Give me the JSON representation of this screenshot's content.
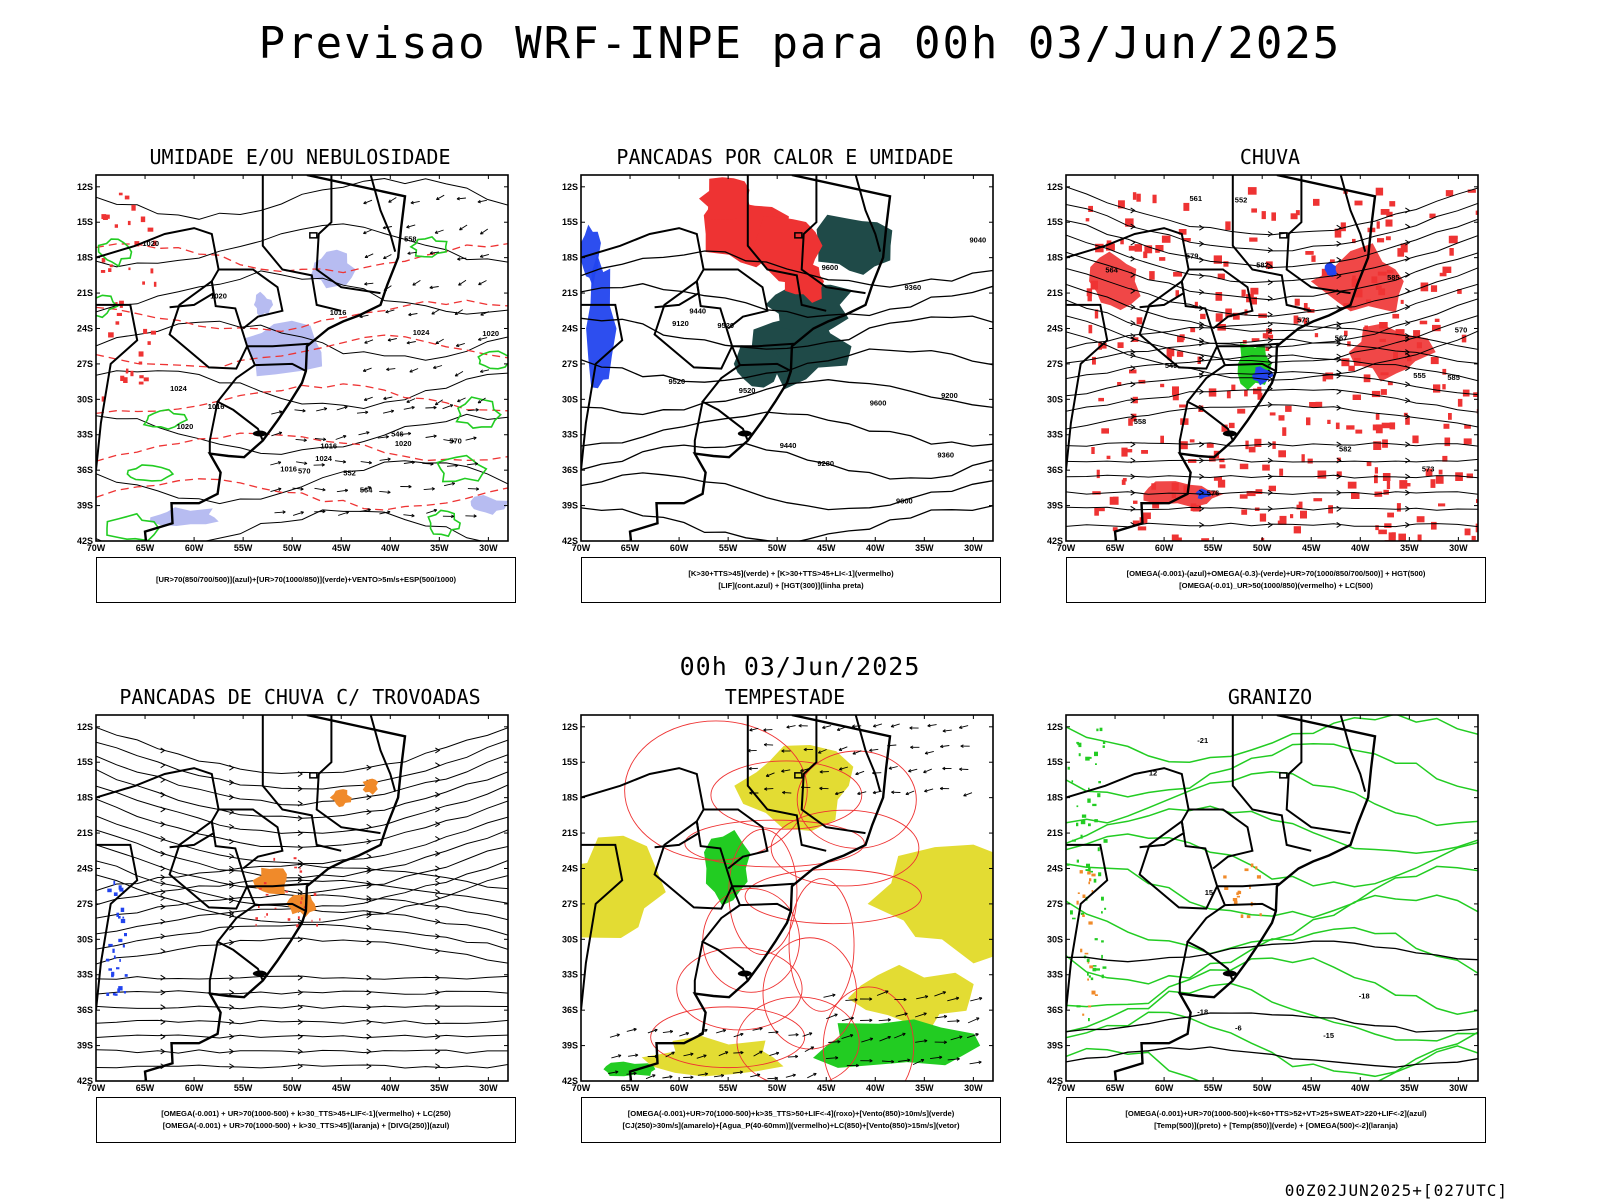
{
  "header": {
    "title": "Previsao WRF-INPE  para 00h 03/Jun/2025",
    "mid_date": "00h 03/Jun/2025",
    "footer": "00Z02JUN2025+[027UTC]"
  },
  "axes": {
    "lat_labels": [
      "12S",
      "15S",
      "18S",
      "21S",
      "24S",
      "27S",
      "30S",
      "33S",
      "36S",
      "39S",
      "42S"
    ],
    "lon_labels": [
      "70W",
      "65W",
      "60W",
      "55W",
      "50W",
      "45W",
      "40W",
      "35W",
      "30W"
    ]
  },
  "colors": {
    "green": "#22cc22",
    "red": "#ee3333",
    "blue": "#2244ee",
    "lavender": "#aab0ee",
    "darkteal": "#1f4a48",
    "yellow": "#e3dc33",
    "orange": "#f08a2a",
    "black": "#000000"
  },
  "panels": [
    {
      "title": "UMIDADE E/OU NEBULOSIDADE",
      "legend": [
        "[UR>70(850/700/500)](azul)+[UR>70(1000/850)](verde)+VENTO>5m/s+ESP(500/1000)"
      ],
      "contour_labels": [
        "1016",
        "1016",
        "1016",
        "1020",
        "1020",
        "1020",
        "1024",
        "1024",
        "1024",
        "1020",
        "1016",
        "570",
        "570",
        "564",
        "558",
        "552",
        "546",
        "1020"
      ]
    },
    {
      "title": "PANCADAS POR CALOR E UMIDADE",
      "legend": [
        "[K>30+TTS>45](verde) + [K>30+TTS>45+LI<-1](vermelho)",
        "[LIF](cont.azul) + [HGT(300)](linha preta)"
      ],
      "contour_labels": [
        "9600",
        "9600",
        "9520",
        "9520",
        "9440",
        "9440",
        "9360",
        "9360",
        "9280",
        "9200",
        "9120",
        "9040",
        "9600",
        "9520"
      ]
    },
    {
      "title": "CHUVA",
      "legend": [
        "[OMEGA(-0.001)-(azul)+OMEGA(-0.3)-(verde)+UR>70(1000/850/700/500)] + HGT(500)",
        "[OMEGA(-0.01)_UR>50(1000/850)(vermelho) + LC(500)"
      ],
      "contour_labels": [
        "585",
        "582",
        "585",
        "582",
        "579",
        "576",
        "573",
        "573",
        "570",
        "567",
        "564",
        "561",
        "558",
        "555",
        "552",
        "549"
      ]
    },
    {
      "title": "PANCADAS DE CHUVA C/ TROVOADAS",
      "legend": [
        "[OMEGA(-0.001) + UR>70(1000-500) + k>30_TTS>45+LIF<-1](vermelho) + LC(250)",
        "[OMEGA(-0.001) + UR>70(1000-500) + k>30_TTS>45](laranja) + [DIVG(250)](azul)"
      ],
      "contour_labels": []
    },
    {
      "title": "TEMPESTADE",
      "legend": [
        "[OMEGA(-0.001)+UR>70(1000-500)+k>35_TTS>50+LIF<-4](roxo)+[Vento(850)>10m/s](verde)",
        "[CJ(250)>30m/s](amarelo)+[Agua_P(40-60mm)](vermelho)+LC(850)+[Vento(850)>15m/s](vetor)"
      ],
      "contour_labels": []
    },
    {
      "title": "GRANIZO",
      "legend": [
        "[OMEGA(-0.001)+UR>70(1000-500)+k<60+TTS>52+VT>25+SWEAT>220+LIF<-2](azul)",
        "[Temp(500)](preto) + [Temp(850)](verde) + [OMEGA(500)<-2](laranja)"
      ],
      "contour_labels": [
        "-6",
        "-15",
        "-18",
        "-18",
        "-21",
        "12",
        "15"
      ]
    }
  ]
}
